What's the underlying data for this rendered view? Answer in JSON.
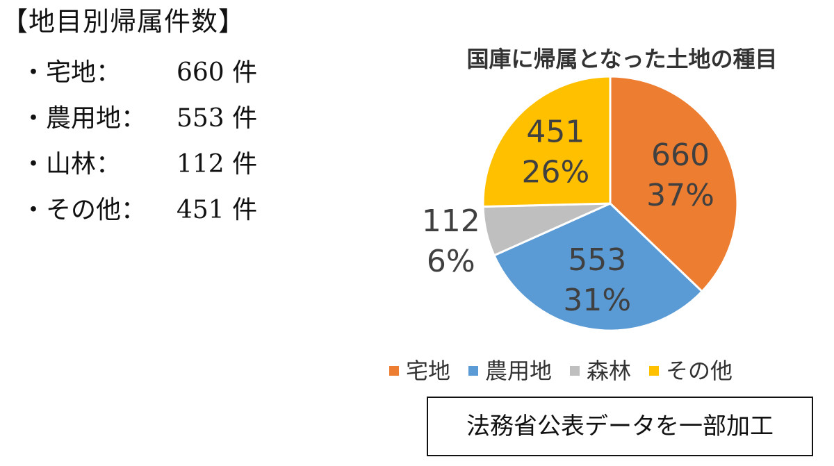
{
  "left_panel": {
    "heading": "【地目別帰属件数】",
    "items": [
      {
        "name": "・宅地：",
        "value": "660 件"
      },
      {
        "name": "・農用地：",
        "value": "553 件"
      },
      {
        "name": "・山林：",
        "value": "112 件"
      },
      {
        "name": "・その他：",
        "value": "451 件"
      }
    ]
  },
  "chart_data": {
    "type": "pie",
    "title": "国庫に帰属となった土地の種目",
    "categories": [
      "宅地",
      "農用地",
      "森林",
      "その他"
    ],
    "values": [
      660,
      553,
      112,
      451
    ],
    "percent_labels": [
      "37%",
      "31%",
      "6%",
      "26%"
    ],
    "colors": [
      "#ED7D31",
      "#5B9BD5",
      "#BFBFBF",
      "#FFC000"
    ],
    "legend_position": "bottom"
  },
  "source_note": "法務省公表データを一部加工"
}
